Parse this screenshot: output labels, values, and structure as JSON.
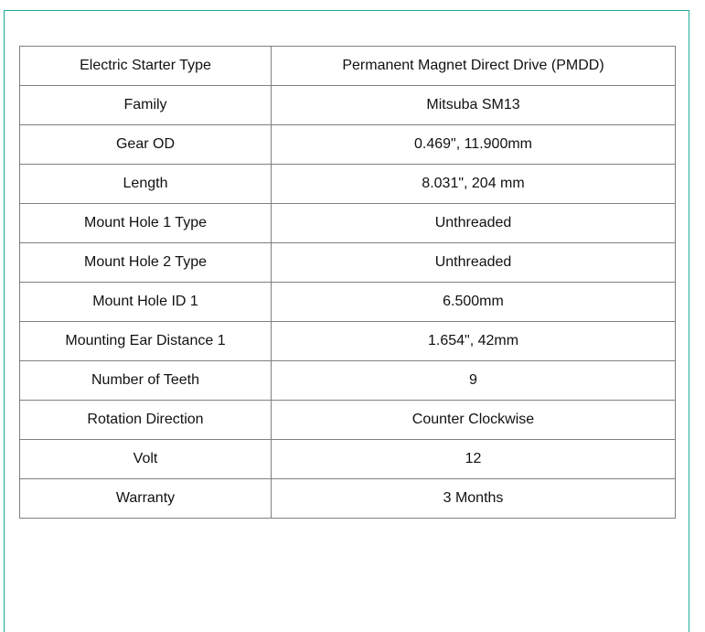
{
  "specs": [
    {
      "label": "Electric Starter Type",
      "value": "Permanent Magnet Direct Drive (PMDD)"
    },
    {
      "label": "Family",
      "value": "Mitsuba SM13"
    },
    {
      "label": "Gear OD",
      "value": "0.469\", 11.900mm"
    },
    {
      "label": "Length",
      "value": "8.031\", 204 mm"
    },
    {
      "label": "Mount Hole 1 Type",
      "value": "Unthreaded"
    },
    {
      "label": "Mount Hole 2 Type",
      "value": "Unthreaded"
    },
    {
      "label": "Mount Hole ID 1",
      "value": "6.500mm"
    },
    {
      "label": "Mounting Ear Distance 1",
      "value": "1.654\", 42mm"
    },
    {
      "label": "Number of Teeth",
      "value": "9"
    },
    {
      "label": "Rotation Direction",
      "value": "Counter Clockwise"
    },
    {
      "label": "Volt",
      "value": "12"
    },
    {
      "label": "Warranty",
      "value": "3 Months"
    }
  ],
  "colors": {
    "frame_border": "#1aab9b",
    "table_border": "#808080"
  }
}
